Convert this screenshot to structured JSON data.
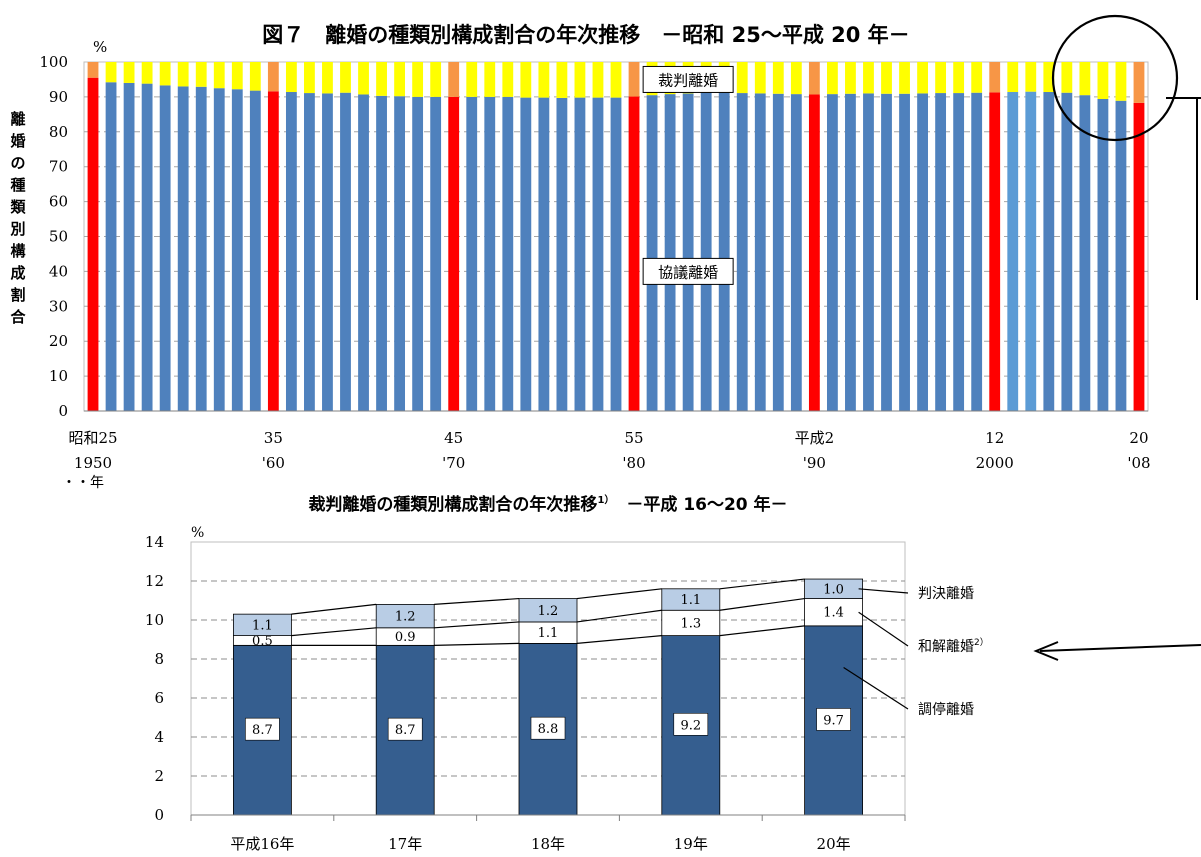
{
  "chart_data": [
    {
      "type": "bar",
      "stacked": true,
      "title": "図７　離婚の種類別構成割合の年次推移　－昭和 25～平成 20 年－",
      "ylabel": "離婚の種類別構成割合",
      "yunit": "%",
      "ylim": [
        0,
        100
      ],
      "yticks": [
        0,
        10,
        20,
        30,
        40,
        50,
        60,
        70,
        80,
        90,
        100
      ],
      "xunit": "・・年",
      "grid": true,
      "x_start_year": 1950,
      "x_end_year": 2008,
      "x_tick_labels": [
        {
          "year": 1950,
          "line1": "昭和25",
          "line2": "1950"
        },
        {
          "year": 1960,
          "line1": "35",
          "line2": "'60"
        },
        {
          "year": 1970,
          "line1": "45",
          "line2": "'70"
        },
        {
          "year": 1980,
          "line1": "55",
          "line2": "'80"
        },
        {
          "year": 1990,
          "line1": "平成2",
          "line2": "'90"
        },
        {
          "year": 2000,
          "line1": "12",
          "line2": "2000"
        },
        {
          "year": 2008,
          "line1": "20",
          "line2": "'08"
        }
      ],
      "highlight_years": [
        1950,
        1960,
        1970,
        1980,
        1990,
        2000,
        2008
      ],
      "annotations": [
        {
          "text": "裁判離婚",
          "year": 1983,
          "y": 95
        },
        {
          "text": "協議離婚",
          "year": 1983,
          "y": 40
        }
      ],
      "series": [
        {
          "name": "協議離婚",
          "color": "#4f81bd",
          "highlight_color": "#ff0000",
          "values": [
            95.5,
            94.2,
            94.0,
            93.8,
            93.3,
            93.0,
            92.9,
            92.5,
            92.2,
            91.8,
            91.6,
            91.4,
            91.1,
            91.0,
            91.2,
            90.7,
            90.3,
            90.2,
            90.0,
            90.0,
            90.0,
            90.0,
            90.0,
            90.0,
            89.8,
            89.8,
            89.7,
            89.8,
            89.8,
            89.8,
            90.1,
            90.5,
            90.8,
            91.0,
            91.2,
            91.2,
            91.1,
            91.0,
            90.9,
            90.8,
            90.7,
            90.8,
            90.9,
            91.0,
            90.9,
            90.9,
            91.0,
            91.1,
            91.1,
            91.2,
            91.3,
            91.4,
            91.5,
            91.4,
            91.2,
            90.5,
            89.4,
            88.9,
            88.3
          ]
        },
        {
          "name": "裁判離婚",
          "color": "#ffff00",
          "highlight_color": "#f79646",
          "values": [
            4.5,
            5.8,
            6.0,
            6.2,
            6.7,
            7.0,
            7.1,
            7.5,
            7.8,
            8.2,
            8.4,
            8.6,
            8.9,
            9.0,
            8.8,
            9.3,
            9.7,
            9.8,
            10.0,
            10.0,
            10.0,
            10.0,
            10.0,
            10.0,
            10.2,
            10.2,
            10.3,
            10.2,
            10.2,
            10.2,
            9.9,
            9.5,
            9.2,
            9.0,
            8.8,
            8.8,
            8.9,
            9.0,
            9.1,
            9.2,
            9.3,
            9.2,
            9.1,
            9.0,
            9.1,
            9.1,
            9.0,
            8.9,
            8.9,
            8.8,
            8.7,
            8.6,
            8.5,
            8.6,
            8.8,
            9.5,
            10.6,
            11.1,
            11.7
          ]
        }
      ]
    },
    {
      "type": "bar",
      "stacked": true,
      "title": "裁判離婚の種類別構成割合の年次推移",
      "title_sup": "1）",
      "title_range": "－平成 16～20 年－",
      "yunit": "%",
      "ylim": [
        0,
        14
      ],
      "yticks": [
        0,
        2,
        4,
        6,
        8,
        10,
        12,
        14
      ],
      "grid": true,
      "categories": [
        "平成16年",
        "17年",
        "18年",
        "19年",
        "20年"
      ],
      "series": [
        {
          "name": "調停離婚",
          "color": "#355e8f",
          "values": [
            8.7,
            8.7,
            8.8,
            9.2,
            9.7
          ]
        },
        {
          "name": "和解離婚",
          "name_sup": "2）",
          "color": "#ffffff",
          "values": [
            0.5,
            0.9,
            1.1,
            1.3,
            1.4
          ]
        },
        {
          "name": "判決離婚",
          "color": "#b9cde5",
          "values": [
            1.1,
            1.2,
            1.2,
            1.1,
            1.0
          ]
        }
      ]
    }
  ]
}
